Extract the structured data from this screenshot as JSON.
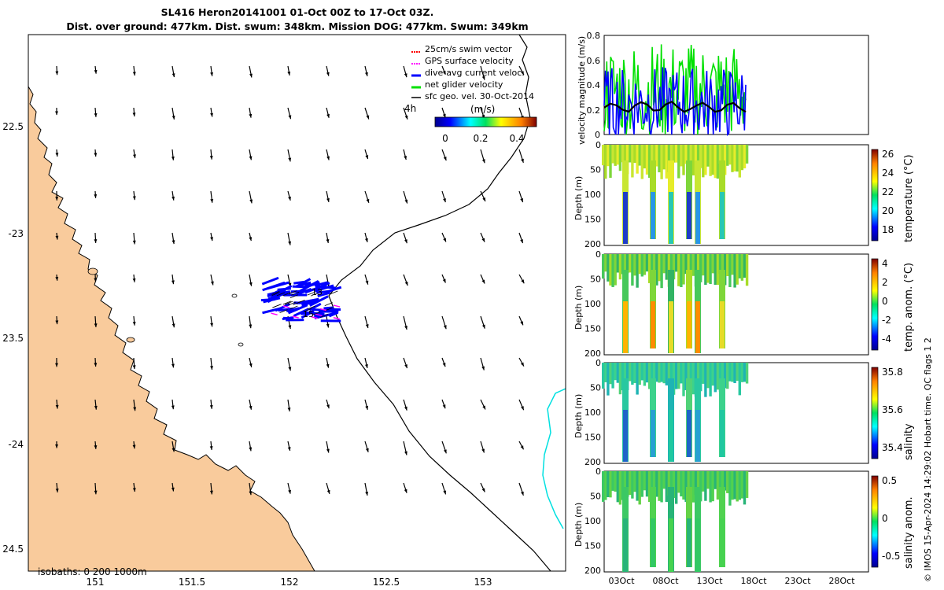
{
  "title": {
    "line1": "SL416 Heron20141001 01-Oct 00Z to 17-Oct 03Z.",
    "line2": "Dist. over ground: 477km. Dist. swum: 348km. Mission DOG: 477km. Swum: 349km"
  },
  "map": {
    "lat_ticks": [
      "22.5",
      "-23",
      "23.5",
      "-24",
      "24.5"
    ],
    "lon_ticks": [
      "151",
      "151.5",
      "152",
      "152.5",
      "153"
    ],
    "isobaths_label": "isobaths: 0   200  1000m",
    "time_label": "4h",
    "legend": [
      {
        "label": "25cm/s swim vector",
        "color": "#ff0000"
      },
      {
        "label": "GPS surface velocity",
        "color": "#ff00ff"
      },
      {
        "label": "dive-avg current veloc.",
        "color": "#0000ff"
      },
      {
        "label": "net glider velocity",
        "color": "#00e000"
      },
      {
        "label": "sfc geo. vel. 30-Oct-2014",
        "color": "#000000"
      }
    ],
    "colorbar": {
      "title": "(m/s)",
      "ticks": [
        "0",
        "0.2",
        "0.4"
      ]
    },
    "track_labels": [
      "15",
      "13"
    ],
    "colors": {
      "land": "#f9cb9c",
      "sea": "#ffffff",
      "isobath_1000": "#00e0e0",
      "isobath_200": "#000000"
    }
  },
  "velocity_panel": {
    "ylabel": "velocity magnitude (m/s)",
    "yticks": [
      "0.8",
      "0.6",
      "0.4",
      "0.2",
      "0"
    ]
  },
  "depth_panels": [
    {
      "ylabel": "Depth (m)",
      "cbar_label": "temperature (°C)",
      "cbar_ticks": [
        "26",
        "24",
        "22",
        "20",
        "18"
      ]
    },
    {
      "ylabel": "Depth (m)",
      "cbar_label": "temp. anom. (°C)",
      "cbar_ticks": [
        "4",
        "2",
        "0",
        "-2",
        "-4"
      ]
    },
    {
      "ylabel": "Depth (m)",
      "cbar_label": "salinity",
      "cbar_ticks": [
        "35.8",
        "35.6",
        "35.4"
      ]
    },
    {
      "ylabel": "Depth (m)",
      "cbar_label": "salinity anom.",
      "cbar_ticks": [
        "0.5",
        "0",
        "-0.5"
      ]
    }
  ],
  "depth_ticks": [
    "0",
    "50",
    "100",
    "150",
    "200"
  ],
  "date_ticks": [
    "03Oct",
    "08Oct",
    "13Oct",
    "18Oct",
    "23Oct",
    "28Oct"
  ],
  "footer": "© IMOS 15-Apr-2024 14:29:02 Hobart time. QC flags 1  2"
}
